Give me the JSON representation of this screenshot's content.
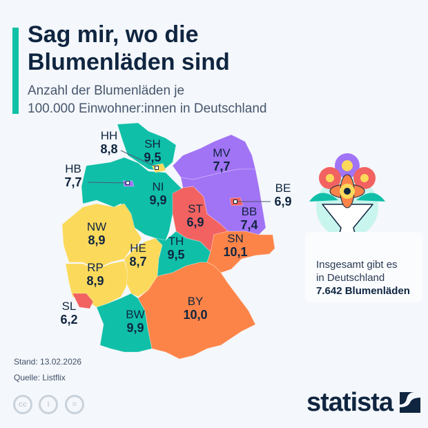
{
  "title": "Sag mir, wo die Blumenläden sind",
  "subtitle_line1": "Anzahl der Blumenläden je",
  "subtitle_line2": "100.000 Einwohner:innen in Deutschland",
  "colors": {
    "teal": "#10bfa8",
    "purple": "#a173f5",
    "red": "#f26260",
    "yellow": "#fbd95b",
    "orange": "#fd8448",
    "accent": "#10c1a6"
  },
  "chart_data": {
    "type": "choropleth-map",
    "unit": "Blumenläden je 100.000 Einwohner:innen",
    "regions": [
      {
        "code": "SH",
        "value": "9,5"
      },
      {
        "code": "HH",
        "value": "8,8"
      },
      {
        "code": "HB",
        "value": "7,7"
      },
      {
        "code": "NI",
        "value": "9,9"
      },
      {
        "code": "MV",
        "value": "7,7"
      },
      {
        "code": "BE",
        "value": "6,9"
      },
      {
        "code": "BB",
        "value": "7,4"
      },
      {
        "code": "ST",
        "value": "6,9"
      },
      {
        "code": "NW",
        "value": "8,9"
      },
      {
        "code": "HE",
        "value": "8,7"
      },
      {
        "code": "TH",
        "value": "9,5"
      },
      {
        "code": "SN",
        "value": "10,1"
      },
      {
        "code": "RP",
        "value": "8,9"
      },
      {
        "code": "SL",
        "value": "6,2"
      },
      {
        "code": "BW",
        "value": "9,9"
      },
      {
        "code": "BY",
        "value": "10,0"
      }
    ]
  },
  "card": {
    "line1": "Insgesamt gibt es",
    "line2": "in Deutschland",
    "total": "7.642 Blumenläden",
    "icon": "flower-bouquet-icon"
  },
  "footer": {
    "stand": "Stand: 13.02.2026",
    "quelle": "Quelle: Listflix",
    "license_icons": [
      "cc-icon",
      "by-icon",
      "nd-icon"
    ],
    "brand": "statista"
  }
}
